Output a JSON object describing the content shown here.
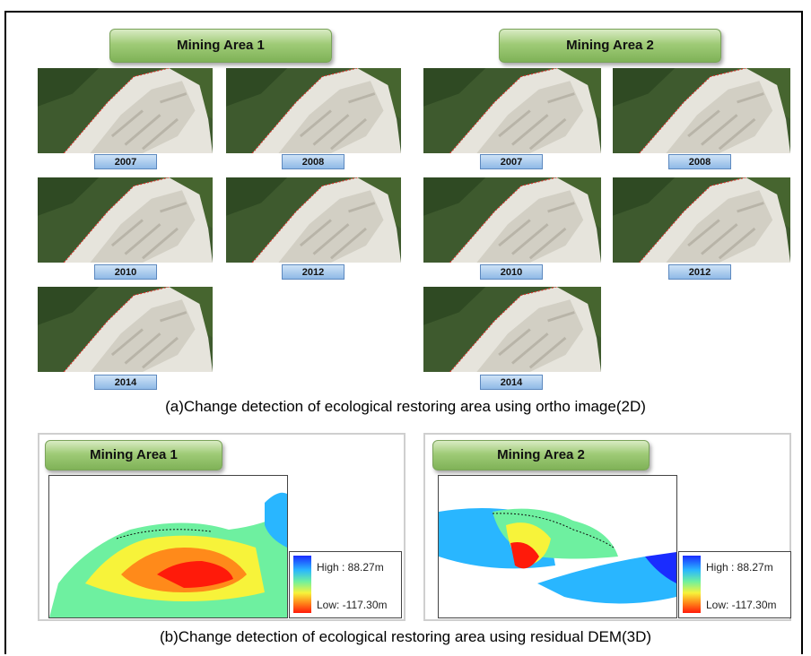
{
  "section_a": {
    "area1_title": "Mining Area 1",
    "area2_title": "Mining Area 2",
    "area1_years": [
      "2007",
      "2008",
      "2010",
      "2012",
      "2014"
    ],
    "area2_years": [
      "2007",
      "2008",
      "2010",
      "2012",
      "2014"
    ],
    "caption": "(a)Change detection of ecological restoring area using ortho image(2D)"
  },
  "section_b": {
    "area1_title": "Mining Area 1",
    "area2_title": "Mining Area 2",
    "legend_high": "High : 88.27m",
    "legend_low": "Low: -117.30m",
    "caption": "(b)Change detection of ecological restoring area using residual DEM(3D)"
  },
  "colors": {
    "forest": "#3e5a2e",
    "quarry": "#e4e2da",
    "restore_line_red": "#d9322a",
    "restore_line_blue": "#3b4fd8"
  }
}
